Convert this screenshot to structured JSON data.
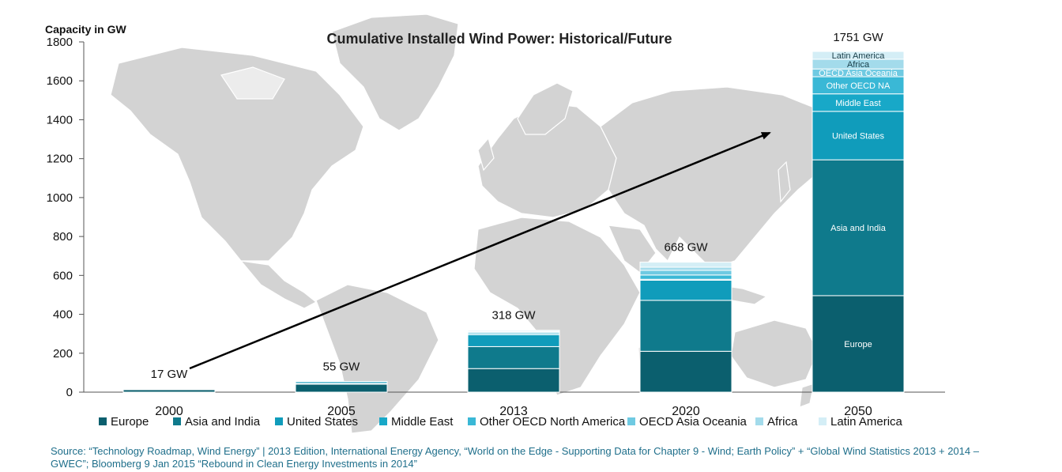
{
  "chart_data": {
    "type": "bar",
    "stacked": true,
    "title": "Cumulative Installed Wind Power: Historical/Future",
    "ylabel": "Capacity in GW",
    "xlabel": "",
    "ylim": [
      0,
      1800
    ],
    "yticks": [
      0,
      200,
      400,
      600,
      800,
      1000,
      1200,
      1400,
      1600,
      1800
    ],
    "grid": false,
    "legend_position": "bottom",
    "categories": [
      "2000",
      "2005",
      "2013",
      "2020",
      "2050"
    ],
    "totals": [
      "17 GW",
      "55 GW",
      "318 GW",
      "668 GW",
      "1751 GW"
    ],
    "series": [
      {
        "name": "Europe",
        "color": "#0b5f6e",
        "values": [
          13,
          41,
          121,
          210,
          496
        ]
      },
      {
        "name": "Asia and India",
        "color": "#0f7a8c",
        "values": [
          1,
          4,
          113,
          262,
          698
        ]
      },
      {
        "name": "United States",
        "color": "#109cbb",
        "values": [
          2,
          9,
          61,
          103,
          249
        ]
      },
      {
        "name": "Middle East",
        "color": "#18a8c8",
        "values": [
          0,
          0,
          1,
          5,
          90
        ]
      },
      {
        "name": "Other OECD North America",
        "color": "#3ab8d6",
        "values": [
          0,
          0,
          8,
          22,
          88
        ]
      },
      {
        "name": "OECD Asia Oceania",
        "color": "#6fcae2",
        "values": [
          1,
          1,
          6,
          24,
          40
        ]
      },
      {
        "name": "Africa",
        "color": "#a3dbeb",
        "values": [
          0,
          0,
          2,
          16,
          50
        ]
      },
      {
        "name": "Latin America",
        "color": "#d4eef6",
        "values": [
          0,
          0,
          6,
          26,
          40
        ]
      }
    ],
    "segment_labels_2050": [
      "Europe",
      "Asia and India",
      "United States",
      "Middle East",
      "Other OECD NA",
      "OECD Asia Oceania",
      "Africa",
      "Latin America"
    ],
    "annotation": "trend arrow from 2000 bar to 2050 bar"
  },
  "source": "Source: “Technology Roadmap, Wind Energy” | 2013 Edition, International Energy Agency, “World on the Edge - Supporting Data for Chapter 9 - Wind; Earth Policy” + “Global Wind Statistics 2013 + 2014 – GWEC”; Bloomberg 9 Jan 2015 “Rebound in Clean Energy Investments in 2014”"
}
